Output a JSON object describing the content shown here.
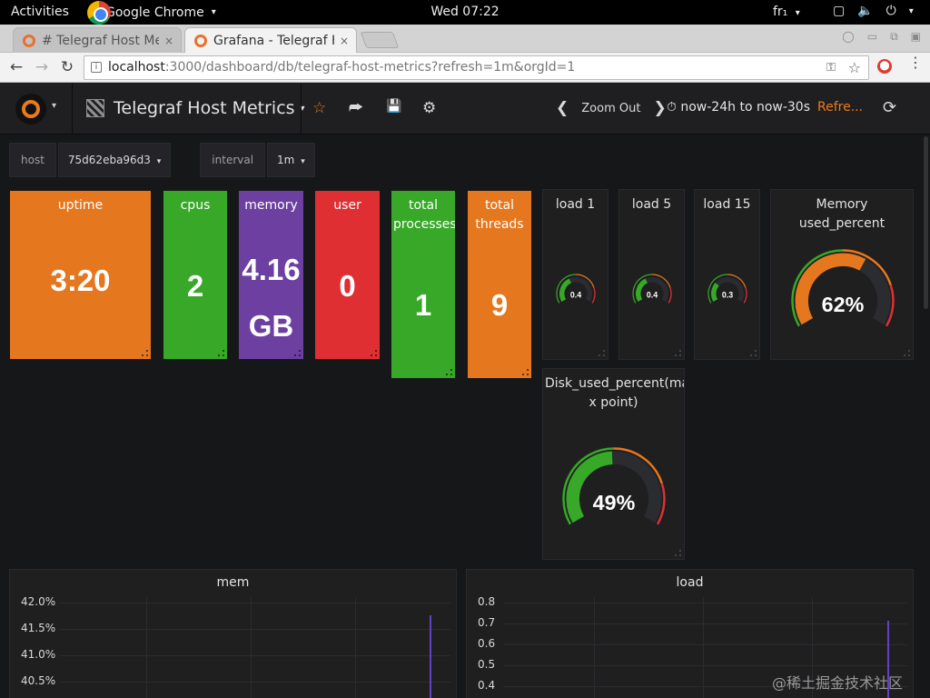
{
  "gnome": {
    "activities": "Activities",
    "app_name": "Google Chrome",
    "app_caret": "▾",
    "clock": "Wed 07:22",
    "lang": "fr₁",
    "lang_caret": "▾"
  },
  "tabs": [
    {
      "title": "# Telegraf Host Metrics",
      "close": "×"
    },
    {
      "title": "Grafana - Telegraf Host Metrics",
      "close": "×"
    }
  ],
  "toolbar": {
    "back": "←",
    "forward": "→",
    "reload": "↻",
    "url_host": "localhost",
    "url_rest": ":3000/dashboard/db/telegraf-host-metrics?refresh=1m&orgId=1",
    "bookmark": "☆",
    "key": "⚿",
    "menu": "⋮"
  },
  "navbar": {
    "logo_caret": "▾",
    "title": "Telegraf Host Metrics",
    "title_caret": "▾",
    "star_icon": "☆",
    "share_icon": "⮫",
    "save_icon": "💾",
    "settings_icon": "⚙",
    "zoom_left": "❮",
    "zoom_out": "Zoom Out",
    "zoom_right": "❯",
    "time_range": "⏱ now-24h to now-30s",
    "refresh_label": "Refre...",
    "refresh_icon": "⟳"
  },
  "variables": [
    {
      "label": "host",
      "value": "75d62eba96d3",
      "caret": "▾"
    },
    {
      "label": "interval",
      "value": "1m",
      "caret": "▾"
    }
  ],
  "singlestats": [
    {
      "title": "uptime",
      "value": "3:20",
      "color": "#e5771e"
    },
    {
      "title": "cpus",
      "value": "2",
      "color": "#37a827"
    },
    {
      "title": "memory",
      "value_line1": "4.16",
      "value_line2": "GB",
      "color": "#6c3fa0"
    },
    {
      "title": "user",
      "value": "0",
      "color": "#e02f32"
    },
    {
      "title_line1": "total",
      "title_line2": "processes",
      "value": "1",
      "color": "#37a827"
    },
    {
      "title_line1": "total",
      "title_line2": "threads",
      "value": "9",
      "color": "#e5771e"
    }
  ],
  "gauges": [
    {
      "title": "load 1",
      "value": 0.4,
      "label": "0.4",
      "max": 1
    },
    {
      "title": "load 5",
      "value": 0.4,
      "label": "0.4",
      "max": 1
    },
    {
      "title": "load 15",
      "value": 0.3,
      "label": "0.3",
      "max": 1
    },
    {
      "title": "Memory used_percent",
      "value": 62,
      "label": "62%",
      "max": 100
    },
    {
      "title_line1": "Disk_used_percent(ma",
      "title_line2": "x point)",
      "value": 49,
      "label": "49%",
      "max": 100
    }
  ],
  "graphs": [
    {
      "title": "mem",
      "yticks": [
        "42.0%",
        "41.5%",
        "41.0%",
        "40.5%"
      ]
    },
    {
      "title": "load",
      "yticks": [
        "0.8",
        "0.7",
        "0.6",
        "0.5",
        "0.4"
      ]
    }
  ],
  "colors": {
    "green": "#37a827",
    "orange": "#e5771e",
    "red": "#e02f32",
    "purple": "#6c3fa0",
    "track": "#2b2c30"
  },
  "watermark": "@稀土掘金技术社区"
}
